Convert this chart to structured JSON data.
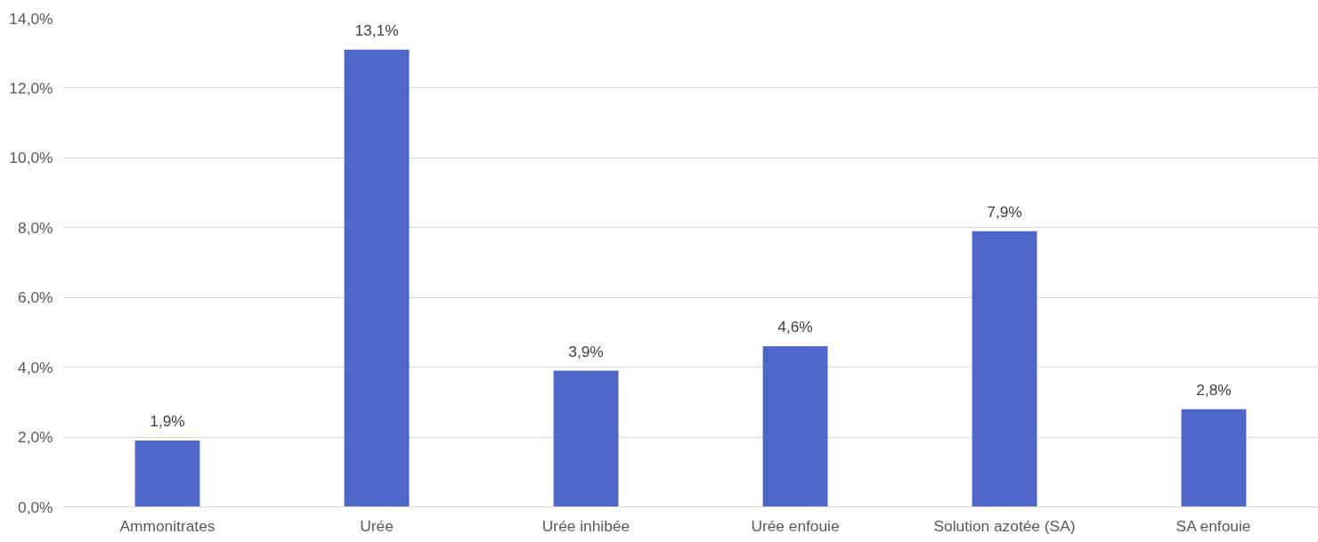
{
  "chart_data": {
    "type": "bar",
    "categories": [
      "Ammonitrates",
      "Urée",
      "Urée inhibée",
      "Urée enfouie",
      "Solution azotée (SA)",
      "SA enfouie"
    ],
    "values": [
      1.9,
      13.1,
      3.9,
      4.6,
      7.9,
      2.8
    ],
    "value_labels": [
      "1,9%",
      "13,1%",
      "3,9%",
      "4,6%",
      "7,9%",
      "2,8%"
    ],
    "color": "#4e67c8",
    "ylim": [
      0,
      14
    ],
    "yticks": [
      {
        "value": 0,
        "label": "0,0%"
      },
      {
        "value": 2,
        "label": "2,0%"
      },
      {
        "value": 4,
        "label": "4,0%"
      },
      {
        "value": 6,
        "label": "6,0%"
      },
      {
        "value": 8,
        "label": "8,0%"
      },
      {
        "value": 10,
        "label": "10,0%"
      },
      {
        "value": 12,
        "label": "12,0%"
      },
      {
        "value": 14,
        "label": "14,0%"
      }
    ],
    "grid": "y"
  }
}
